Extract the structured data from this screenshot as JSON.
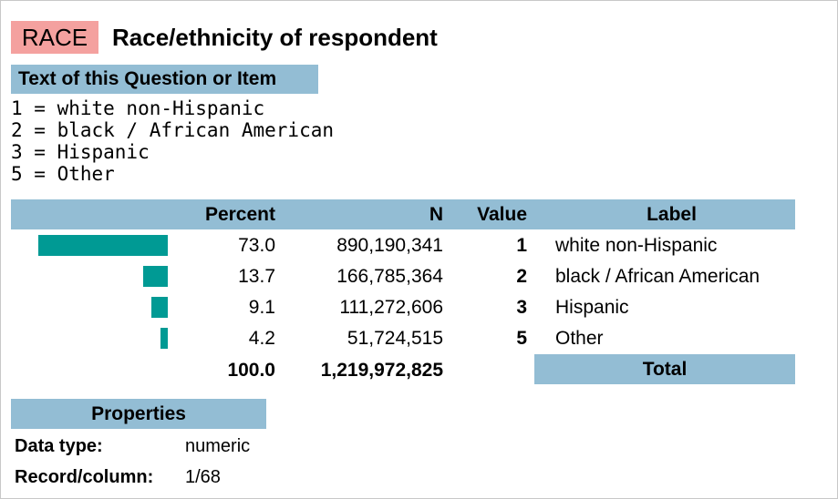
{
  "variable": {
    "name": "RACE",
    "description": "Race/ethnicity of respondent"
  },
  "question": {
    "header": "Text of this Question or Item",
    "lines": [
      "1 = white non-Hispanic",
      "2 = black / African American",
      "3 = Hispanic",
      "5 = Other"
    ]
  },
  "frequency_table": {
    "columns": [
      "Percent",
      "N",
      "Value",
      "Label"
    ],
    "rows": [
      {
        "percent": "73.0",
        "n": "890,190,341",
        "value": "1",
        "label": "white non-Hispanic"
      },
      {
        "percent": "13.7",
        "n": "166,785,364",
        "value": "2",
        "label": "black / African American"
      },
      {
        "percent": "9.1",
        "n": "111,272,606",
        "value": "3",
        "label": "Hispanic"
      },
      {
        "percent": "4.2",
        "n": "51,724,515",
        "value": "5",
        "label": "Other"
      }
    ],
    "total": {
      "percent": "100.0",
      "n": "1,219,972,825",
      "label": "Total"
    },
    "bar_percents": [
      73.0,
      13.7,
      9.1,
      4.2
    ]
  },
  "properties": {
    "header": "Properties",
    "items": [
      {
        "key": "Data type:",
        "value": "numeric"
      },
      {
        "key": "Record/column:",
        "value": "1/68"
      }
    ]
  },
  "colors": {
    "badge": "#f4a19f",
    "header_bar": "#93bdd4",
    "bar": "#009a94"
  }
}
